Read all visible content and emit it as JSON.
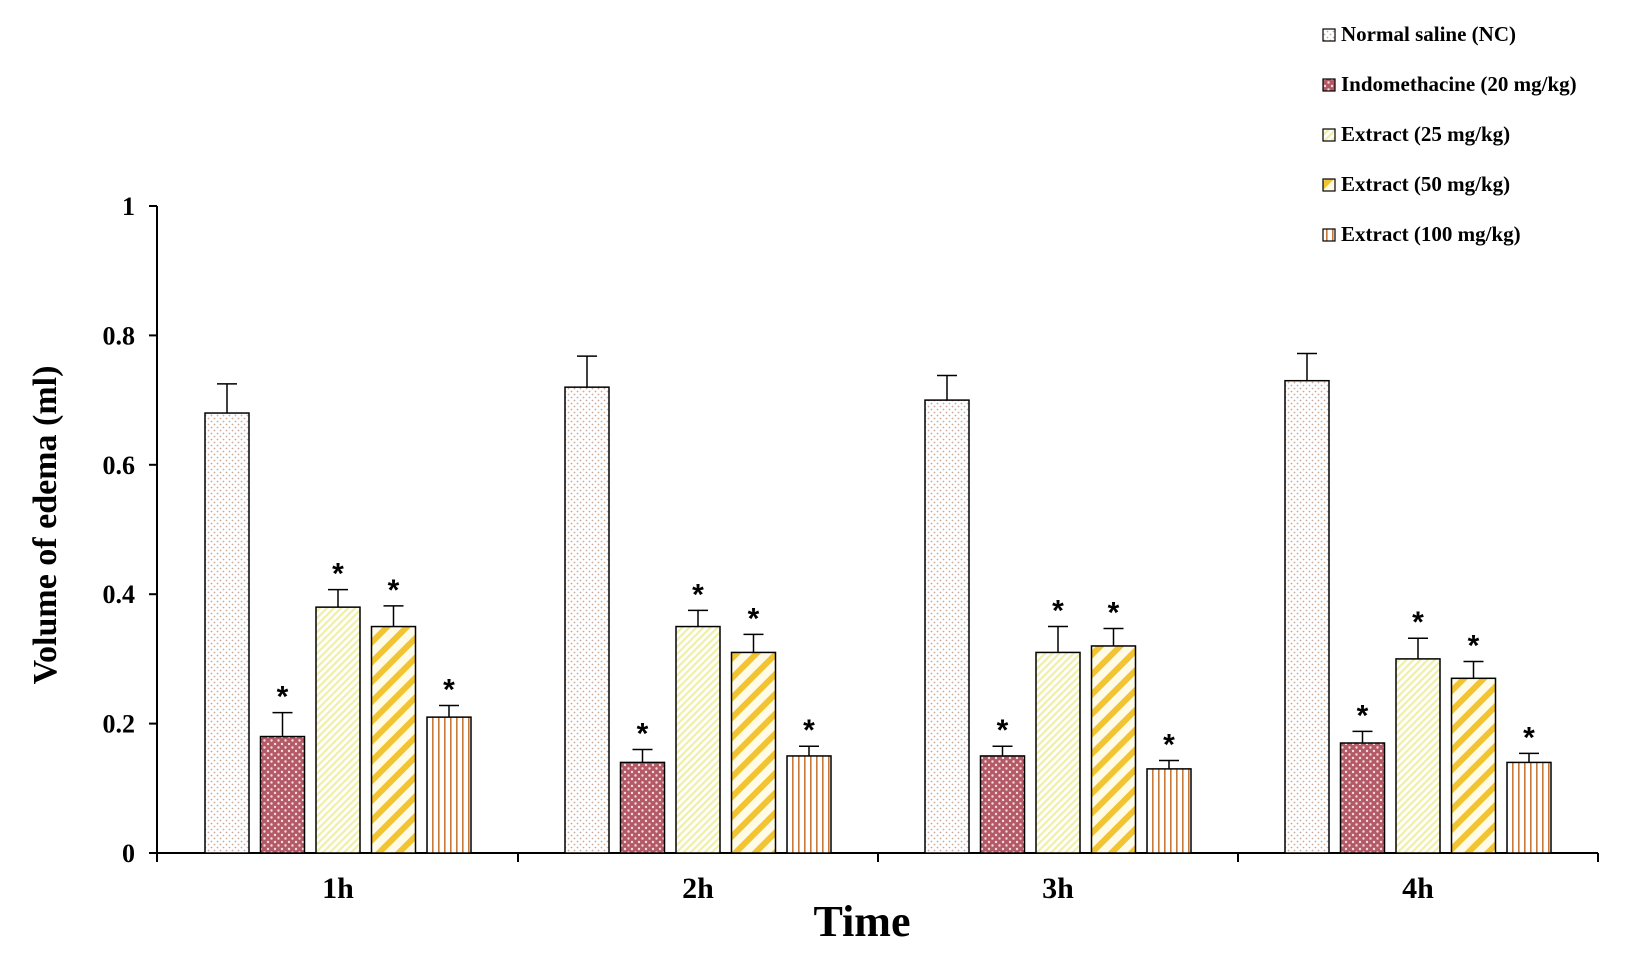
{
  "chart_data": {
    "type": "bar",
    "xlabel": "Time",
    "ylabel": "Volume of edema (ml)",
    "ylim": [
      0,
      1
    ],
    "yticks": [
      "0",
      "0.2",
      "0.4",
      "0.6",
      "0.8",
      "1"
    ],
    "categories": [
      "1h",
      "2h",
      "3h",
      "4h"
    ],
    "legend_position": "top-right",
    "significance_marker": "*",
    "series": [
      {
        "name": "Normal saline (NC)",
        "values": [
          0.68,
          0.72,
          0.7,
          0.73
        ],
        "errors": [
          0.045,
          0.048,
          0.038,
          0.042
        ],
        "significant": [
          false,
          false,
          false,
          false
        ],
        "color": "#f3e9e2",
        "pattern": "dots"
      },
      {
        "name": "Indomethacine (20 mg/kg)",
        "values": [
          0.18,
          0.14,
          0.15,
          0.17
        ],
        "errors": [
          0.037,
          0.02,
          0.015,
          0.018
        ],
        "significant": [
          true,
          true,
          true,
          true
        ],
        "color": "#b45a66",
        "pattern": "light-dots"
      },
      {
        "name": "Extract (25 mg/kg)",
        "values": [
          0.38,
          0.35,
          0.31,
          0.3
        ],
        "errors": [
          0.027,
          0.025,
          0.04,
          0.032
        ],
        "significant": [
          true,
          true,
          true,
          true
        ],
        "color": "#f7f5c0",
        "pattern": "fine-hatch"
      },
      {
        "name": "Extract (50 mg/kg)",
        "values": [
          0.35,
          0.31,
          0.32,
          0.27
        ],
        "errors": [
          0.032,
          0.028,
          0.027,
          0.026
        ],
        "significant": [
          true,
          true,
          true,
          true
        ],
        "color": "#f2c431",
        "pattern": "diagonal-stripes"
      },
      {
        "name": "Extract (100 mg/kg)",
        "values": [
          0.21,
          0.15,
          0.13,
          0.14
        ],
        "errors": [
          0.018,
          0.015,
          0.013,
          0.014
        ],
        "significant": [
          true,
          true,
          true,
          true
        ],
        "color": "#c77a3a",
        "pattern": "vertical-lines"
      }
    ]
  }
}
